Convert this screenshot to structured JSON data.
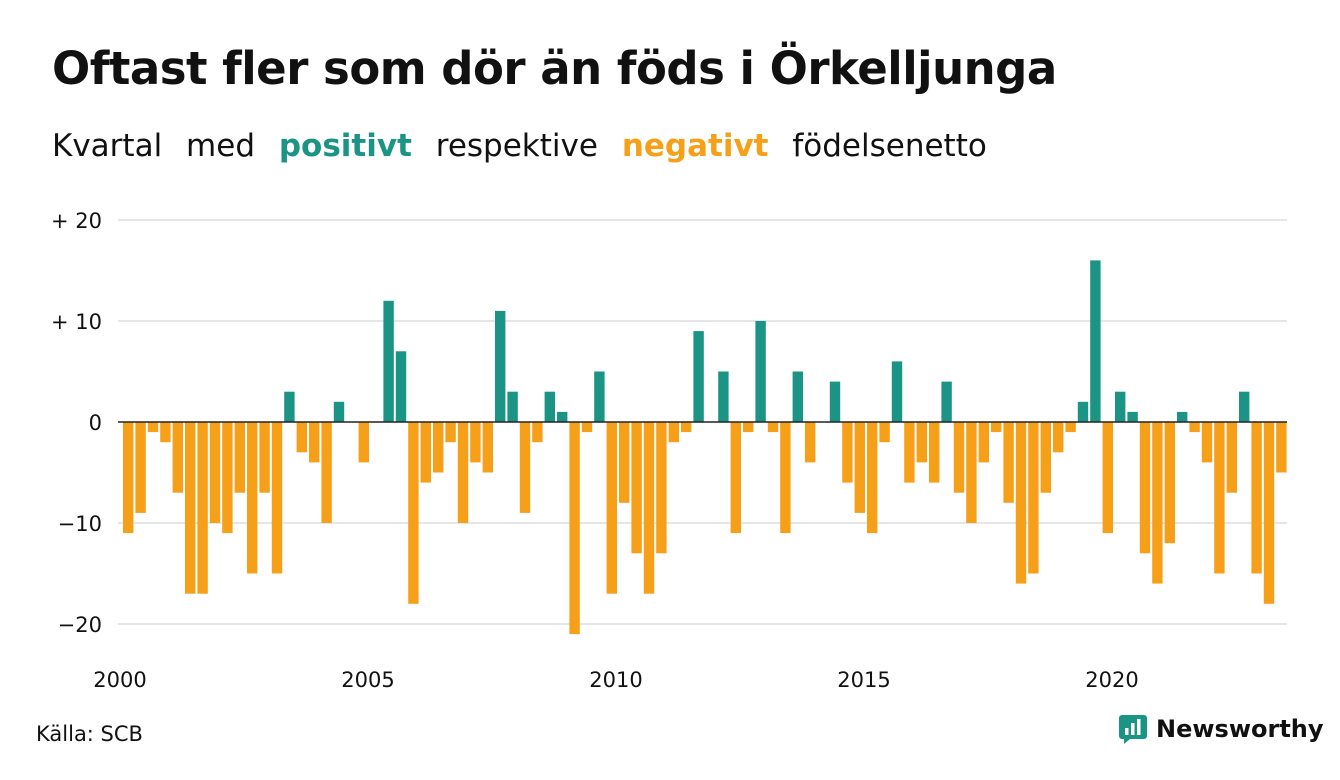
{
  "header": {
    "title": "Oftast fler som dör än föds i Örkelljunga",
    "subtitle_parts": [
      "Kvartal",
      "med",
      "positivt",
      "respektive",
      "negativt",
      "födelsenetto"
    ]
  },
  "footer": {
    "source": "Källa: SCB",
    "brand": "Newsworthy"
  },
  "colors": {
    "positive": "#1b9385",
    "negative": "#f6a01a",
    "grid": "#dddddd",
    "zero_line": "#222222"
  },
  "chart_data": {
    "type": "bar",
    "y_ticks": [
      {
        "value": 20,
        "label": "+ 20"
      },
      {
        "value": 10,
        "label": "+ 10"
      },
      {
        "value": 0,
        "label": "0"
      },
      {
        "value": -10,
        "label": "−10"
      },
      {
        "value": -20,
        "label": "−20"
      }
    ],
    "x_ticks": [
      {
        "value": 2000,
        "label": "2000"
      },
      {
        "value": 2005,
        "label": "2005"
      },
      {
        "value": 2010,
        "label": "2010"
      },
      {
        "value": 2015,
        "label": "2015"
      },
      {
        "value": 2020,
        "label": "2020"
      }
    ],
    "ylim": [
      -22,
      20
    ],
    "xlim": [
      2000,
      2024
    ],
    "start": "2000 Q1",
    "frequency": "quarterly",
    "values": [
      -11,
      -9,
      -1,
      -2,
      -7,
      -17,
      -17,
      -10,
      -11,
      -7,
      -15,
      -7,
      -15,
      3,
      -3,
      -4,
      -10,
      2,
      0,
      -4,
      0,
      12,
      7,
      -18,
      -6,
      -5,
      -2,
      -10,
      -4,
      -5,
      11,
      3,
      -9,
      -2,
      3,
      1,
      -21,
      -1,
      5,
      -17,
      -8,
      -13,
      -17,
      -13,
      -2,
      -1,
      9,
      0,
      5,
      -11,
      -1,
      10,
      -1,
      -11,
      5,
      -4,
      0,
      4,
      -6,
      -9,
      -11,
      -2,
      6,
      -6,
      -4,
      -6,
      4,
      -7,
      -10,
      -4,
      -1,
      -8,
      -16,
      -15,
      -7,
      -3,
      -1,
      2,
      16,
      -11,
      3,
      1,
      -13,
      -16,
      -12,
      1,
      -1,
      -4,
      -15,
      -7,
      3,
      -15,
      -18,
      -5
    ],
    "grid": true
  }
}
